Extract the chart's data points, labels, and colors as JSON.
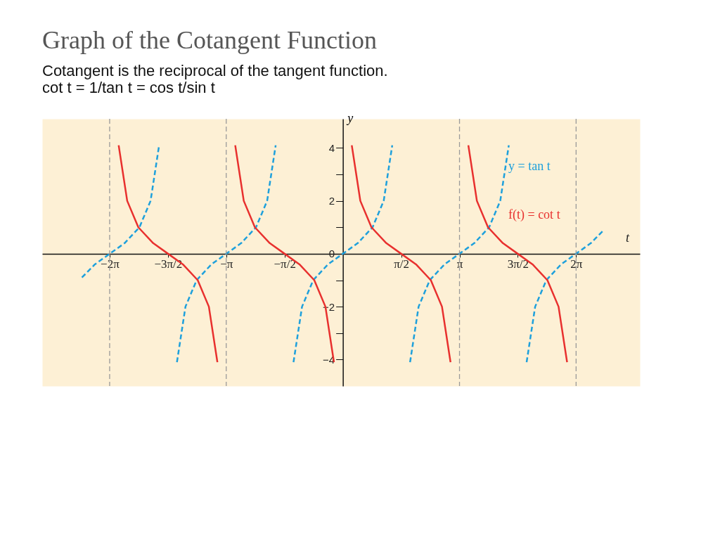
{
  "chart_data": {
    "type": "line",
    "title": "Graph of the Cotangent Function",
    "subtitle": "Cotangent is the reciprocal of the tangent function.",
    "annotations": [
      "cot t = 1/tan t = cos t/sin t"
    ],
    "xlabel": "t",
    "ylabel": "y",
    "xlim": [
      -8.1,
      8.0
    ],
    "ylim": [
      -5.0,
      5.1
    ],
    "xticks": [
      {
        "value": -6.283,
        "label": "−2π"
      },
      {
        "value": -4.712,
        "label": "−3π/2"
      },
      {
        "value": -3.142,
        "label": "−π"
      },
      {
        "value": -1.571,
        "label": "−π/2"
      },
      {
        "value": 1.571,
        "label": "π/2"
      },
      {
        "value": 3.142,
        "label": "π"
      },
      {
        "value": 4.712,
        "label": "3π/2"
      },
      {
        "value": 6.283,
        "label": "2π"
      }
    ],
    "yticks": [
      {
        "value": -4,
        "label": "−4"
      },
      {
        "value": -3,
        "label": null
      },
      {
        "value": -2,
        "label": "−2"
      },
      {
        "value": -1,
        "label": null
      },
      0,
      {
        "value": 1,
        "label": null
      },
      2,
      {
        "value": 3,
        "label": null
      },
      4
    ],
    "grid": false,
    "legend": false,
    "marker": "none",
    "ref_lines": [
      {
        "axis": "x",
        "value": -6.283,
        "color": "#9a9a9a",
        "line_style": "dashed"
      },
      {
        "axis": "x",
        "value": -3.142,
        "color": "#9a9a9a",
        "line_style": "dashed"
      },
      {
        "axis": "x",
        "value": 3.142,
        "color": "#9a9a9a",
        "line_style": "dashed"
      },
      {
        "axis": "x",
        "value": 6.283,
        "color": "#9a9a9a",
        "line_style": "dashed"
      }
    ],
    "series": [
      {
        "name": "y = tan t",
        "color": "#1ea0dc",
        "line_style": "dashed",
        "x": [
          -7.03,
          -6.68,
          -6.28,
          -5.88,
          -5.48,
          -5.18,
          -4.95,
          -4.71,
          -4.47,
          -4.24,
          -3.94,
          -3.54,
          -3.14,
          -2.74,
          -2.34,
          -2.04,
          -1.81,
          -1.57,
          -1.33,
          -1.1,
          -0.8,
          -0.4,
          0,
          0.4,
          0.8,
          1.1,
          1.33,
          1.57,
          1.81,
          2.04,
          2.34,
          2.74,
          3.14,
          3.54,
          3.94,
          4.24,
          4.47,
          4.71,
          4.95,
          5.18,
          5.48,
          5.88,
          6.28,
          6.68,
          7.03
        ],
        "values": [
          -0.9,
          -0.4,
          0,
          0.4,
          1,
          2,
          4.1,
          null,
          -4.1,
          -2,
          -1,
          -0.4,
          0,
          0.4,
          1,
          2,
          4.1,
          null,
          -4.1,
          -2,
          -1,
          -0.4,
          0,
          0.4,
          1,
          2,
          4.1,
          null,
          -4.1,
          -2,
          -1,
          -0.4,
          0,
          0.4,
          1,
          2,
          4.1,
          null,
          -4.1,
          -2,
          -1,
          -0.4,
          0,
          0.4,
          0.9
        ]
      },
      {
        "name": "f(t) = cot t",
        "color": "#e8302e",
        "line_style": "solid",
        "x": [
          -6.04,
          -5.81,
          -5.51,
          -5.11,
          -4.71,
          -4.31,
          -3.91,
          -3.61,
          -3.38,
          -3.14,
          -2.9,
          -2.67,
          -2.37,
          -1.97,
          -1.57,
          -1.17,
          -0.77,
          -0.47,
          -0.24,
          0,
          0.24,
          0.47,
          0.77,
          1.17,
          1.57,
          1.97,
          2.37,
          2.67,
          2.9,
          3.14,
          3.38,
          3.61,
          3.91,
          4.31,
          4.71,
          5.11,
          5.51,
          5.81,
          6.04
        ],
        "values": [
          4.1,
          2,
          1,
          0.4,
          0,
          -0.4,
          -1,
          -2,
          -4.1,
          null,
          4.1,
          2,
          1,
          0.4,
          0,
          -0.4,
          -1,
          -2,
          -4.1,
          null,
          4.1,
          2,
          1,
          0.4,
          0,
          -0.4,
          -1,
          -2,
          -4.1,
          null,
          4.1,
          2,
          1,
          0.4,
          0,
          -0.4,
          -1,
          -2,
          -4.1
        ]
      }
    ]
  }
}
